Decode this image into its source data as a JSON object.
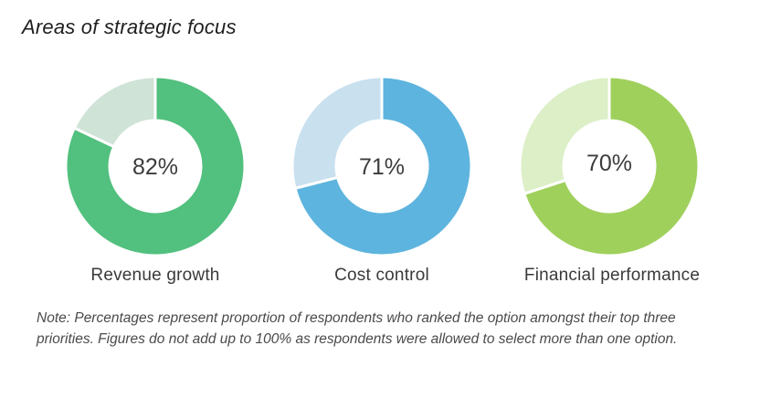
{
  "title": "Areas of strategic focus",
  "colors": {
    "revenue": "#52c07e",
    "revenue_rest": "#cfe3d6",
    "cost": "#5db4de",
    "cost_rest": "#c9e0ef",
    "financial": "#9fd05c",
    "financial_rest": "#dcefc7"
  },
  "chart_data": {
    "type": "pie",
    "title": "Areas of strategic focus",
    "style": "donut",
    "categories": [
      "Revenue growth",
      "Cost control",
      "Financial performance"
    ],
    "values": [
      82,
      71,
      70
    ],
    "value_labels": [
      "82%",
      "71%",
      "70%"
    ],
    "unit": "%",
    "max": 100
  },
  "note": "Note: Percentages represent proportion of respondents who ranked the option amongst their top three priorities. Figures do not add up to 100% as respondents were allowed to select more than one option."
}
